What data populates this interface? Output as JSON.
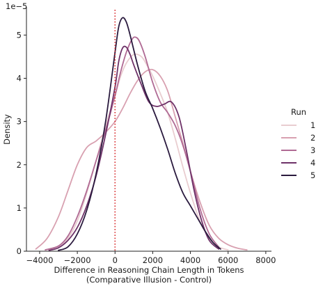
{
  "chart_data": {
    "type": "line",
    "xlabel": "Difference in Reasoning Chain Length in Tokens",
    "xlabel2": "(Comparative Illusion - Control)",
    "ylabel": "Density",
    "y_offset_label": "1e−5",
    "xlim": [
      -4700,
      8300
    ],
    "ylim": [
      0,
      5.65
    ],
    "x_ticks": [
      -4000,
      -2000,
      0,
      2000,
      4000,
      6000,
      8000
    ],
    "x_tick_labels": [
      "−4000",
      "−2000",
      "0",
      "2000",
      "4000",
      "6000",
      "8000"
    ],
    "y_ticks": [
      0,
      1,
      2,
      3,
      4,
      5
    ],
    "y_tick_labels": [
      "0",
      "1",
      "2",
      "3",
      "4",
      "5"
    ],
    "reference_line": {
      "x": 0,
      "color": "#d62728",
      "style": "dotted"
    },
    "legend": {
      "title": "Run",
      "placement": "right"
    },
    "series": [
      {
        "name": "1",
        "color": "#e9cdd0",
        "x": [
          -3700,
          -3000,
          -2500,
          -2000,
          -1500,
          -1000,
          -500,
          0,
          300,
          600,
          1000,
          1400,
          1700,
          2000,
          2400,
          2800,
          3200,
          3600,
          4000,
          4500,
          5000,
          5500,
          6000
        ],
        "y": [
          0.03,
          0.12,
          0.3,
          0.7,
          1.35,
          2.1,
          2.9,
          3.6,
          4.05,
          4.35,
          4.55,
          4.5,
          4.3,
          4.05,
          3.65,
          3.2,
          2.6,
          1.95,
          1.35,
          0.7,
          0.3,
          0.1,
          0.03
        ]
      },
      {
        "name": "2",
        "color": "#d8a0b0",
        "x": [
          -4200,
          -3600,
          -3000,
          -2500,
          -2000,
          -1500,
          -1000,
          -500,
          0,
          400,
          800,
          1200,
          1600,
          2000,
          2400,
          2800,
          3200,
          3600,
          4000,
          4500,
          5000,
          5500,
          6000,
          6500,
          7000
        ],
        "y": [
          0.05,
          0.3,
          0.8,
          1.4,
          2.0,
          2.4,
          2.55,
          2.75,
          3.0,
          3.3,
          3.65,
          3.95,
          4.15,
          4.2,
          4.05,
          3.7,
          3.1,
          2.5,
          1.85,
          1.15,
          0.6,
          0.3,
          0.15,
          0.07,
          0.03
        ]
      },
      {
        "name": "3",
        "color": "#b06a94",
        "x": [
          -3700,
          -3000,
          -2500,
          -2000,
          -1500,
          -1000,
          -500,
          0,
          300,
          600,
          900,
          1100,
          1300,
          1600,
          2000,
          2400,
          2800,
          3200,
          3600,
          4000,
          4500,
          5000,
          5500
        ],
        "y": [
          0.03,
          0.12,
          0.35,
          0.8,
          1.4,
          2.1,
          2.8,
          3.6,
          4.15,
          4.6,
          4.9,
          4.95,
          4.85,
          4.5,
          3.9,
          3.45,
          3.2,
          2.9,
          2.45,
          1.85,
          1.0,
          0.4,
          0.1
        ]
      },
      {
        "name": "4",
        "color": "#6e3268",
        "x": [
          -3500,
          -3000,
          -2500,
          -2000,
          -1500,
          -1000,
          -500,
          0,
          200,
          400,
          600,
          800,
          1000,
          1400,
          1800,
          2200,
          2600,
          3000,
          3400,
          3800,
          4200,
          4600,
          5000,
          5500
        ],
        "y": [
          0.02,
          0.08,
          0.25,
          0.55,
          1.05,
          1.75,
          2.7,
          3.8,
          4.4,
          4.7,
          4.72,
          4.55,
          4.3,
          3.85,
          3.45,
          3.35,
          3.4,
          3.45,
          3.1,
          2.3,
          1.4,
          0.7,
          0.25,
          0.05
        ]
      },
      {
        "name": "5",
        "color": "#2a1a3e",
        "x": [
          -3000,
          -2500,
          -2000,
          -1500,
          -1000,
          -500,
          0,
          200,
          400,
          600,
          800,
          1200,
          1600,
          2000,
          2400,
          2800,
          3200,
          3600,
          4000,
          4400,
          4800,
          5200,
          5600
        ],
        "y": [
          0.02,
          0.1,
          0.4,
          0.95,
          1.8,
          3.0,
          4.6,
          5.2,
          5.4,
          5.3,
          5.0,
          4.3,
          3.7,
          3.3,
          2.85,
          2.35,
          1.8,
          1.35,
          1.05,
          0.75,
          0.45,
          0.2,
          0.05
        ]
      }
    ]
  }
}
